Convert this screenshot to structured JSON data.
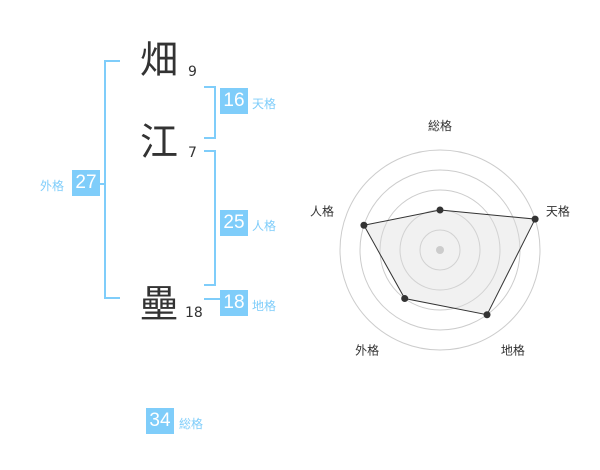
{
  "characters": [
    {
      "char": "畑",
      "strokes": "9"
    },
    {
      "char": "江",
      "strokes": "7"
    },
    {
      "char": "壘",
      "strokes": "18"
    }
  ],
  "scores": {
    "tenkaku": {
      "label": "天格",
      "value": "16"
    },
    "jinkaku": {
      "label": "人格",
      "value": "25"
    },
    "chikaku": {
      "label": "地格",
      "value": "18"
    },
    "gaikaku": {
      "label": "外格",
      "value": "27"
    },
    "soukaku": {
      "label": "総格",
      "value": "34"
    }
  },
  "accent": "#7fcdfa",
  "chart_data": {
    "type": "radar",
    "axes": [
      "総格",
      "天格",
      "地格",
      "外格",
      "人格"
    ],
    "values": [
      2,
      5,
      4,
      3,
      4
    ],
    "range": [
      0,
      5
    ],
    "grid": "concentric circles"
  }
}
